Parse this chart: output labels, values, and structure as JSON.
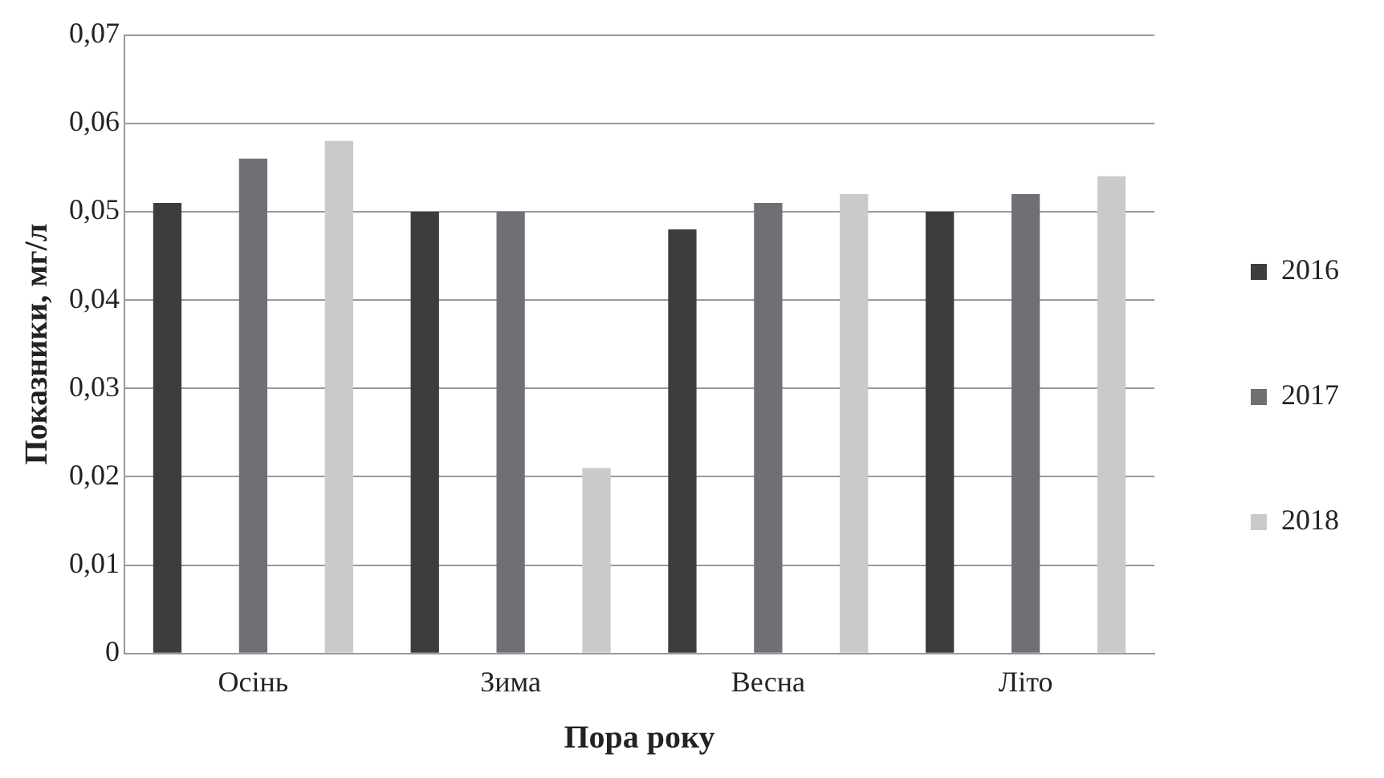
{
  "chart_data": {
    "type": "bar",
    "xlabel": "Пора року",
    "ylabel": "Показники, мг/л",
    "categories": [
      "Осінь",
      "Зима",
      "Весна",
      "Літо"
    ],
    "series": [
      {
        "name": "2016",
        "color": "#3d3d3f",
        "values": [
          0.051,
          0.05,
          0.048,
          0.05
        ]
      },
      {
        "name": "2017",
        "color": "#707074",
        "values": [
          0.056,
          0.05,
          0.051,
          0.052
        ]
      },
      {
        "name": "2018",
        "color": "#c9cacc",
        "values": [
          0.058,
          0.021,
          0.052,
          0.054
        ]
      }
    ],
    "ylim": [
      0,
      0.07
    ],
    "yticks": [
      {
        "value": 0,
        "label": "0"
      },
      {
        "value": 0.01,
        "label": "0,01"
      },
      {
        "value": 0.02,
        "label": "0,02"
      },
      {
        "value": 0.03,
        "label": "0,03"
      },
      {
        "value": 0.04,
        "label": "0,04"
      },
      {
        "value": 0.05,
        "label": "0,05"
      },
      {
        "value": 0.06,
        "label": "0,06"
      },
      {
        "value": 0.07,
        "label": "0,07"
      }
    ],
    "grid": "y",
    "legend": "right"
  }
}
